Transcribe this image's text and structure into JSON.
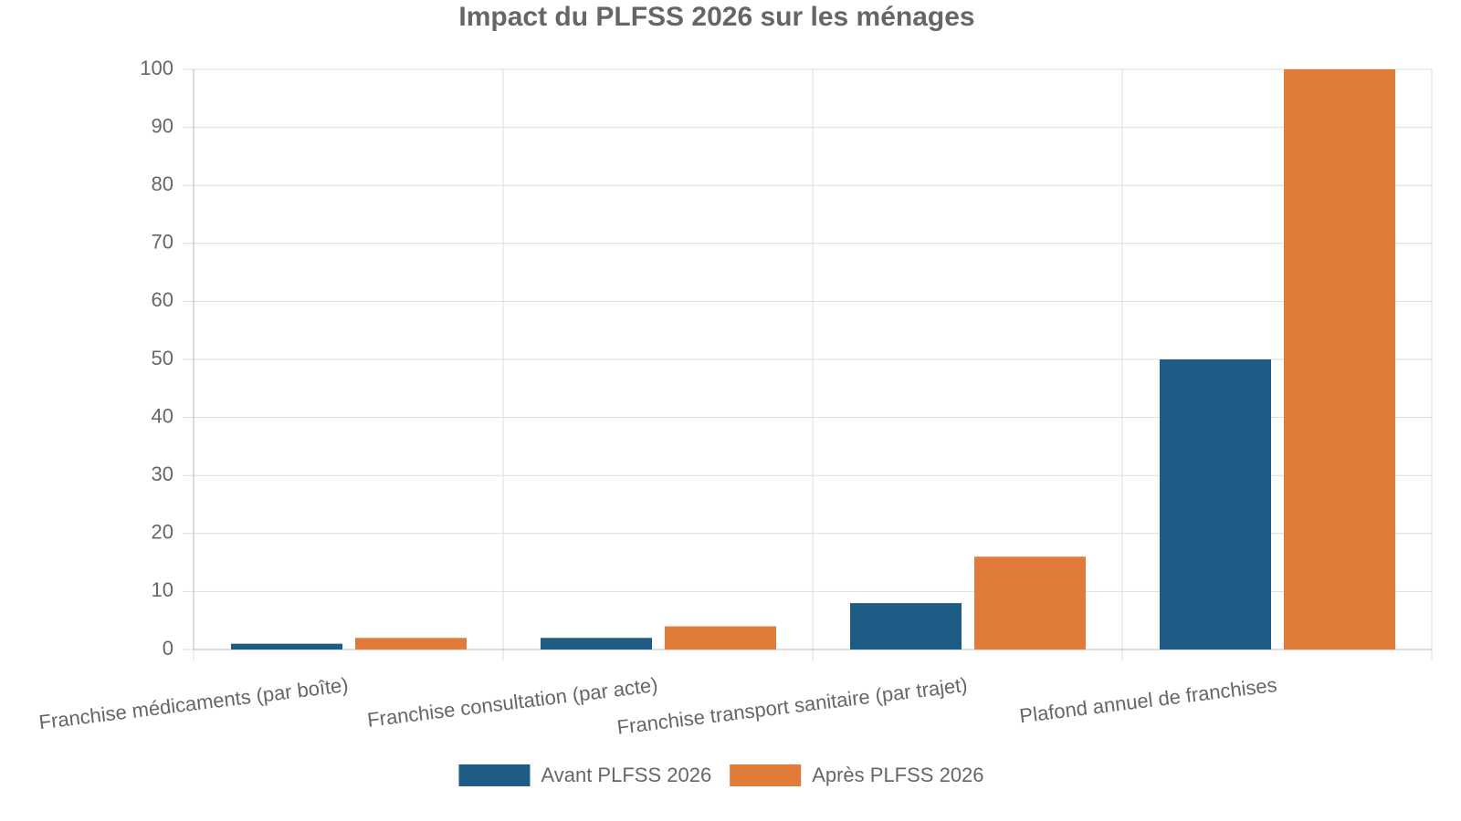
{
  "chart_data": {
    "type": "bar",
    "title": "Impact du PLFSS 2026 sur les ménages",
    "categories": [
      "Franchise médicaments (par boîte)",
      "Franchise consultation (par acte)",
      "Franchise transport sanitaire (par trajet)",
      "Plafond annuel de franchises"
    ],
    "series": [
      {
        "name": "Avant PLFSS 2026",
        "color": "#1f5c85",
        "values": [
          1,
          2,
          8,
          50
        ]
      },
      {
        "name": "Après PLFSS 2026",
        "color": "#e07b39",
        "values": [
          2,
          4,
          16,
          100
        ]
      }
    ],
    "ylim": [
      0,
      100
    ],
    "yticks": [
      0,
      10,
      20,
      30,
      40,
      50,
      60,
      70,
      80,
      90,
      100
    ],
    "grid": true,
    "legend": "bottom"
  }
}
